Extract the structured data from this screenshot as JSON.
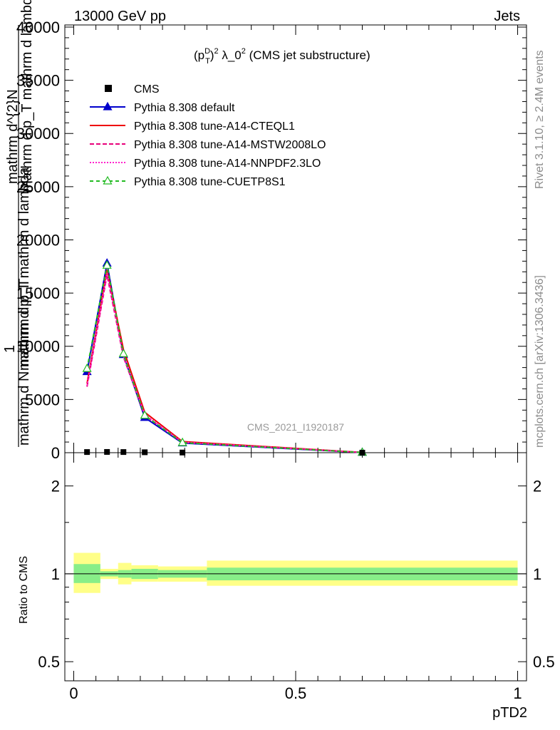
{
  "header": {
    "left": "13000 GeV pp",
    "right": "Jets"
  },
  "side_text": {
    "rivet": "Rivet 3.1.10, ≥ 2.4M events",
    "mcplots": "mcplots.cern.ch [arXiv:1306.3436]"
  },
  "chart_data": {
    "type": "line",
    "title": "(p_T^D)^2 λ_0^2 (CMS jet substructure)",
    "title_parts": {
      "a": "(p",
      "sup1": "D",
      "sub1": "T",
      "b": ")",
      "sup2": "2",
      "c": " λ_0",
      "sup3": "2",
      "d": " (CMS jet substructure)"
    },
    "watermark": "CMS_2021_I1920187",
    "xlabel": "pTD2",
    "ylabel_main_top": "mathrm d^{2}N",
    "ylabel_main_mid": "mathrm d p_T mathrm d lambda",
    "ylabel_overlap1": "1",
    "ylabel_overlap2": "mathrm d N mathrm d p_T",
    "ylabel_overlap3": "mathrm d p_T mathrm d lambda",
    "ylabel_ratio": "Ratio to CMS",
    "xlim": [
      -0.02,
      1.02
    ],
    "ylim": [
      0,
      40200
    ],
    "ratio_ylim_log": [
      0.43,
      2.6
    ],
    "x_ticks": [
      {
        "v": 0,
        "label": "0"
      },
      {
        "v": 0.5,
        "label": "0.5"
      },
      {
        "v": 1,
        "label": "1"
      }
    ],
    "y_ticks": [
      {
        "v": 0,
        "label": "0"
      },
      {
        "v": 5000,
        "label": "5000"
      },
      {
        "v": 10000,
        "label": "10000"
      },
      {
        "v": 15000,
        "label": "15000"
      },
      {
        "v": 20000,
        "label": "20000"
      },
      {
        "v": 25000,
        "label": "25000"
      },
      {
        "v": 30000,
        "label": "30000"
      },
      {
        "v": 35000,
        "label": "35000"
      },
      {
        "v": 40000,
        "label": "40000"
      }
    ],
    "ratio_ticks": [
      {
        "v": 0.5,
        "label": "0.5"
      },
      {
        "v": 1,
        "label": "1"
      },
      {
        "v": 2,
        "label": "2"
      }
    ],
    "bins": [
      0.0,
      0.06,
      0.1,
      0.13,
      0.19,
      0.3,
      1.0
    ],
    "x": [
      0.03,
      0.075,
      0.112,
      0.16,
      0.245,
      0.65
    ],
    "data_points": [
      {
        "x": 0.03,
        "y": 60
      },
      {
        "x": 0.075,
        "y": 70
      },
      {
        "x": 0.112,
        "y": 60
      },
      {
        "x": 0.16,
        "y": 40
      },
      {
        "x": 0.245,
        "y": 15
      },
      {
        "x": 0.65,
        "y": 2
      }
    ],
    "ratio_band_inner": [
      {
        "lo": 0.93,
        "hi": 1.08
      },
      {
        "lo": 0.98,
        "hi": 1.02
      },
      {
        "lo": 0.97,
        "hi": 1.03
      },
      {
        "lo": 0.96,
        "hi": 1.04
      },
      {
        "lo": 0.97,
        "hi": 1.03
      },
      {
        "lo": 0.95,
        "hi": 1.05
      }
    ],
    "ratio_band_outer": [
      {
        "lo": 0.86,
        "hi": 1.18
      },
      {
        "lo": 0.96,
        "hi": 1.04
      },
      {
        "lo": 0.92,
        "hi": 1.09
      },
      {
        "lo": 0.94,
        "hi": 1.07
      },
      {
        "lo": 0.94,
        "hi": 1.06
      },
      {
        "lo": 0.91,
        "hi": 1.11
      }
    ],
    "data_legend": "CMS",
    "series": [
      {
        "name": "Pythia 8.308 default",
        "color": "#0000cc",
        "dash": "none",
        "marker": "triangle-filled",
        "values": [
          7600,
          17800,
          9200,
          3300,
          900,
          20
        ]
      },
      {
        "name": "Pythia 8.308 tune-A14-CTEQL1",
        "color": "#ee0000",
        "dash": "none",
        "marker": "none",
        "values": [
          6500,
          17200,
          9700,
          3800,
          1050,
          25
        ]
      },
      {
        "name": "Pythia 8.308 tune-A14-MSTW2008LO",
        "color": "#e8007a",
        "dash": "6,3",
        "marker": "none",
        "values": [
          6200,
          16700,
          9000,
          3500,
          960,
          22
        ]
      },
      {
        "name": "Pythia 8.308 tune-A14-NNPDF2.3LO",
        "color": "#ff22cc",
        "dash": "2,2",
        "marker": "none",
        "values": [
          6300,
          16900,
          9100,
          3600,
          980,
          22
        ]
      },
      {
        "name": "Pythia 8.308 tune-CUETP8S1",
        "color": "#22bb22",
        "dash": "5,4",
        "marker": "triangle-open",
        "values": [
          7900,
          17600,
          9300,
          3500,
          940,
          20
        ]
      }
    ]
  }
}
